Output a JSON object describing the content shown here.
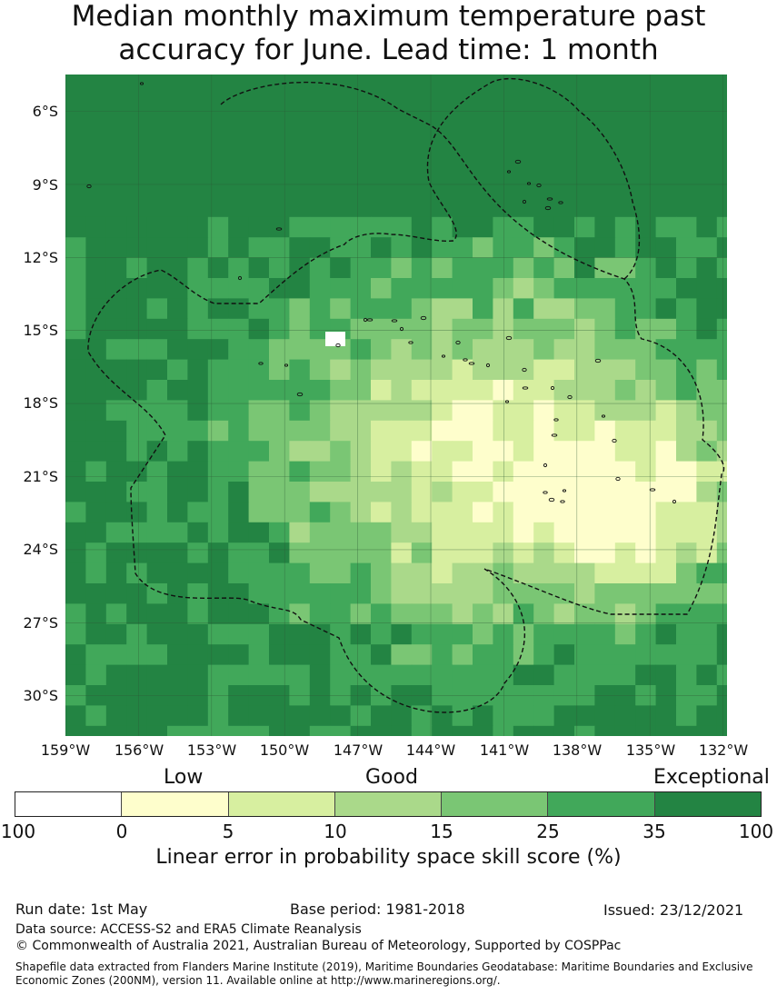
{
  "title_line1": "Median monthly maximum temperature past",
  "title_line2": "accuracy for June. Lead time: 1 month",
  "map": {
    "lat_ticks": [
      "6°S",
      "9°S",
      "12°S",
      "15°S",
      "18°S",
      "21°S",
      "24°S",
      "27°S",
      "30°S"
    ],
    "lon_ticks": [
      "159°W",
      "156°W",
      "153°W",
      "150°W",
      "147°W",
      "144°W",
      "141°W",
      "138°W",
      "135°W",
      "132°W"
    ],
    "colors": {
      "c0": "#ffffff",
      "c1": "#fefecc",
      "c2": "#d7efa0",
      "c3": "#aad98a",
      "c4": "#7ac674",
      "c5": "#41a85a",
      "c6": "#238443",
      "boundary": "#111111",
      "grid": "#2c5a35"
    }
  },
  "legend": {
    "categories": [
      "Low",
      "Good",
      "Exceptional"
    ],
    "ticks": [
      "100",
      "0",
      "5",
      "10",
      "15",
      "25",
      "35",
      "100"
    ],
    "segment_colors": [
      "#ffffff",
      "#fefecc",
      "#d7efa0",
      "#aad98a",
      "#7ac674",
      "#41a85a",
      "#238443"
    ],
    "label": "Linear error in probability space skill score (%)"
  },
  "footer": {
    "run_date": "Run date: 1st May",
    "base_period": "Base period: 1981-2018",
    "issued": "Issued: 23/12/2021",
    "data_source": "Data source: ACCESS-S2 and ERA5 Climate Reanalysis",
    "copyright": "© Commonwealth of Australia 2021, Australian Bureau of Meteorology, Supported by COSPPac",
    "shapefile": "Shapefile data extracted from Flanders Marine Institute (2019), Maritime Boundaries Geodatabase: Maritime Boundaries and Exclusive Economic Zones (200NM), version 11. Available online at http://www.marineregions.org/."
  }
}
